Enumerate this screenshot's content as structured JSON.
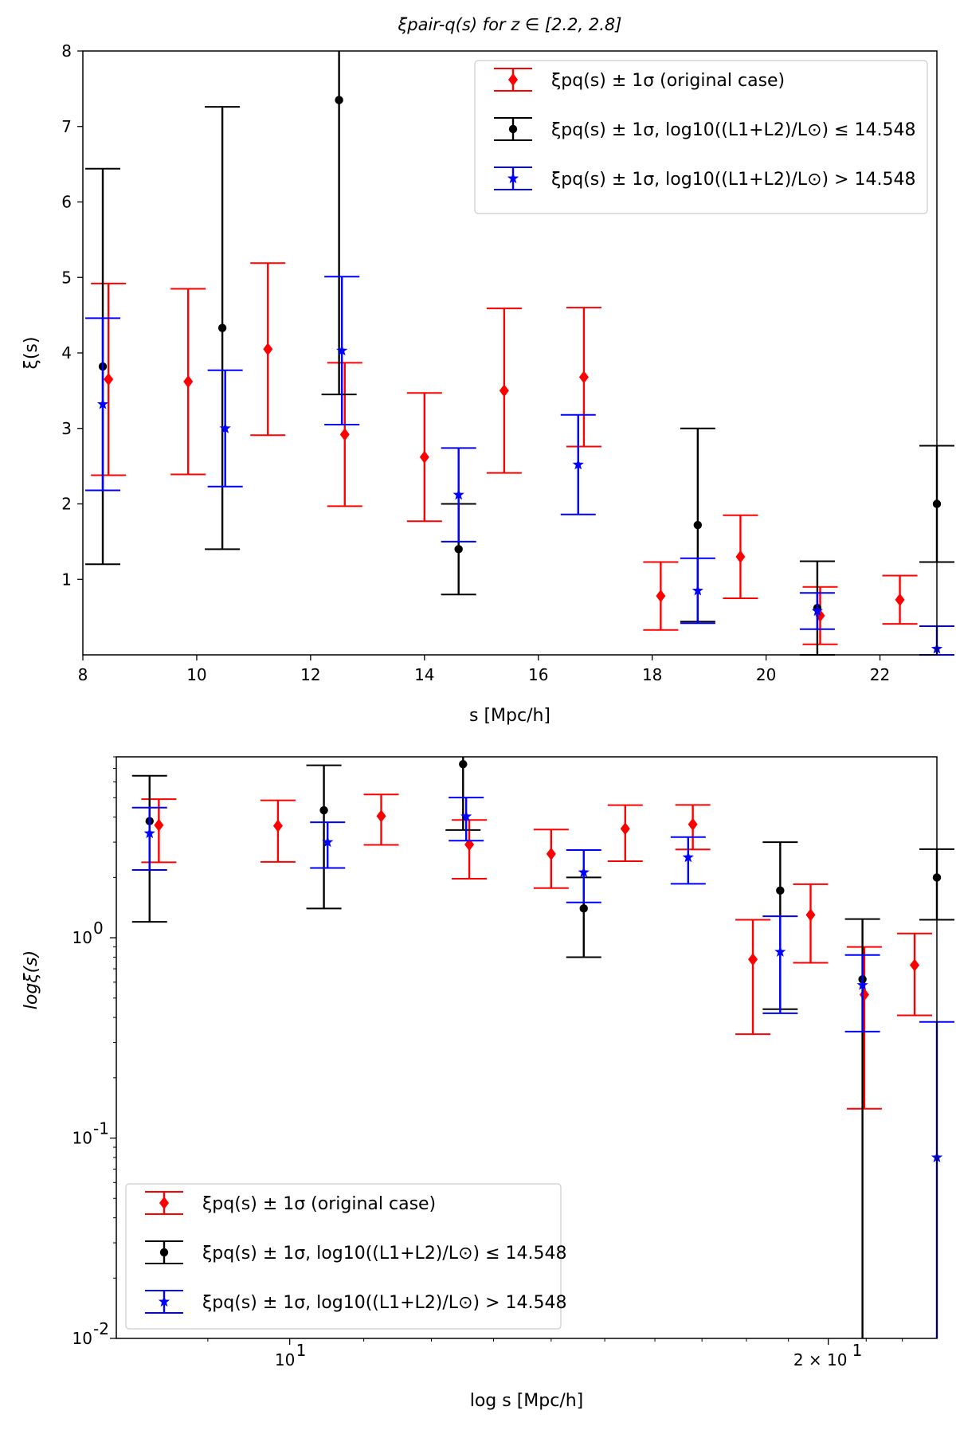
{
  "chart_data": [
    {
      "type": "scatter",
      "yscale": "linear",
      "title": "ξpair-q(s) for z ∈ [2.2, 2.8]",
      "xlabel": "s [Mpc/h]",
      "ylabel": "ξ(s)",
      "xlim": [
        8,
        23
      ],
      "ylim": [
        0,
        8
      ],
      "xticks": [
        8,
        10,
        12,
        14,
        16,
        18,
        20,
        22
      ],
      "yticks": [
        1,
        2,
        3,
        4,
        5,
        6,
        7,
        8
      ],
      "legend_position": "upper right",
      "series": [
        {
          "name": "ξpq(s) ± 1σ (original case)",
          "color": "#ff0000",
          "marker": "diamond",
          "x": [
            8.45,
            9.85,
            11.25,
            12.6,
            14.0,
            15.4,
            16.8,
            18.15,
            19.55,
            20.95,
            22.35
          ],
          "y": [
            3.65,
            3.62,
            4.05,
            2.92,
            2.62,
            3.5,
            3.68,
            0.78,
            1.3,
            0.52,
            0.73
          ],
          "err": [
            1.27,
            1.23,
            1.14,
            0.95,
            0.85,
            1.09,
            0.92,
            0.45,
            0.55,
            0.38,
            0.32
          ]
        },
        {
          "name": "ξpq(s) ± 1σ, log10((L1+L2)/L⊙) ≤ 14.548",
          "color": "#000000",
          "marker": "circle",
          "x": [
            8.35,
            10.45,
            12.5,
            14.6,
            18.8,
            20.9,
            23.0
          ],
          "y": [
            3.82,
            4.33,
            7.35,
            1.4,
            1.72,
            0.62,
            2.0
          ],
          "err": [
            2.62,
            2.93,
            3.9,
            0.6,
            1.28,
            0.62,
            0.77
          ]
        },
        {
          "name": "ξpq(s) ± 1σ, log10((L1+L2)/L⊙) > 14.548",
          "color": "#0000ff",
          "marker": "star",
          "x": [
            8.35,
            10.5,
            12.55,
            14.6,
            16.7,
            18.8,
            20.9,
            23.0
          ],
          "y": [
            3.32,
            3.0,
            4.03,
            2.12,
            2.52,
            0.85,
            0.58,
            0.08
          ],
          "err": [
            1.14,
            0.77,
            0.98,
            0.62,
            0.66,
            0.43,
            0.24,
            0.3
          ]
        }
      ]
    },
    {
      "type": "scatter",
      "yscale": "log",
      "xscale": "log",
      "title": "",
      "xlabel": "log s [Mpc/h]",
      "ylabel": "logξ(s)",
      "xlim": [
        8,
        23
      ],
      "ylim": [
        0.01,
        8
      ],
      "legend_position": "lower left",
      "tick_labels_y": [
        "10",
        "10",
        "10"
      ],
      "tick_exps_y": [
        "-2",
        "-1",
        "0"
      ],
      "tick_labels_x": [
        "10",
        "2 × 10"
      ],
      "tick_exps_x": [
        "1",
        "1"
      ],
      "series_ref": "same data as panel 1 plotted on log-log axes"
    }
  ]
}
